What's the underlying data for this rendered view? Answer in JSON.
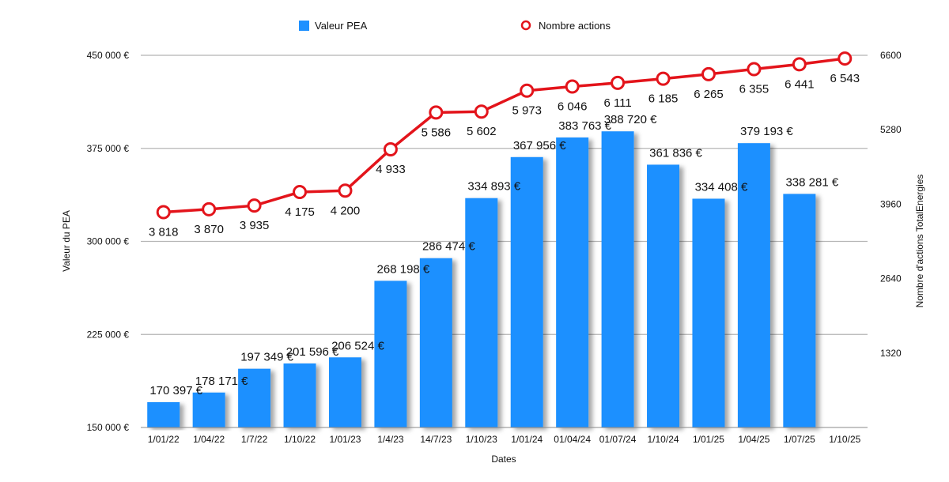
{
  "chart_data": {
    "type": "bar",
    "categories": [
      "1/01/22",
      "1/04/22",
      "1/7/22",
      "1/10/22",
      "1/01/23",
      "1/4/23",
      "14/7/23",
      "1/10/23",
      "1/01/24",
      "01/04/24",
      "01/07/24",
      "1/10/24",
      "1/01/25",
      "1/04/25",
      "1/07/25",
      "1/10/25"
    ],
    "xlabel": "Dates",
    "ylabel": "Valeur du PEA",
    "y2label": "Nombre d'actions TotalEnergies",
    "ylim": [
      150000,
      450000
    ],
    "y2lim": [
      0,
      6600
    ],
    "yticks": [
      {
        "value": 150000,
        "label": "150 000 €"
      },
      {
        "value": 225000,
        "label": "225 000 €"
      },
      {
        "value": 300000,
        "label": "300 000 €"
      },
      {
        "value": 375000,
        "label": "375 000 €"
      },
      {
        "value": 450000,
        "label": "450 000 €"
      }
    ],
    "y2ticks": [
      {
        "value": 1320,
        "label": "1320"
      },
      {
        "value": 2640,
        "label": "2640"
      },
      {
        "value": 3960,
        "label": "3960"
      },
      {
        "value": 5280,
        "label": "5280"
      },
      {
        "value": 6600,
        "label": "6600"
      }
    ],
    "grid": true,
    "legend_position": "top",
    "series": [
      {
        "name": "Valeur PEA",
        "type": "bar",
        "axis": "left",
        "color": "#1e90ff",
        "values": [
          170397,
          178171,
          197349,
          201596,
          206524,
          268198,
          286474,
          334893,
          367956,
          383763,
          388720,
          361836,
          334408,
          379193,
          338281,
          null
        ],
        "labels": [
          "170 397 €",
          "178 171 €",
          "197 349 €",
          "201 596 €",
          "206 524 €",
          "268 198 €",
          "286 474 €",
          "334 893 €",
          "367 956 €",
          "383 763 €",
          "388 720 €",
          "361 836 €",
          "334 408 €",
          "379 193 €",
          "338 281 €",
          ""
        ]
      },
      {
        "name": "Nombre actions",
        "type": "line",
        "axis": "right",
        "color": "#e3141b",
        "values": [
          3818,
          3870,
          3935,
          4175,
          4200,
          4933,
          5586,
          5602,
          5973,
          6046,
          6111,
          6185,
          6265,
          6355,
          6441,
          6543
        ],
        "labels": [
          "3 818",
          "3 870",
          "3 935",
          "4 175",
          "4 200",
          "4 933",
          "5 586",
          "5 602",
          "5 973",
          "6 046",
          "6 111",
          "6 185",
          "6 265",
          "6 355",
          "6 441",
          "6 543"
        ]
      }
    ]
  }
}
